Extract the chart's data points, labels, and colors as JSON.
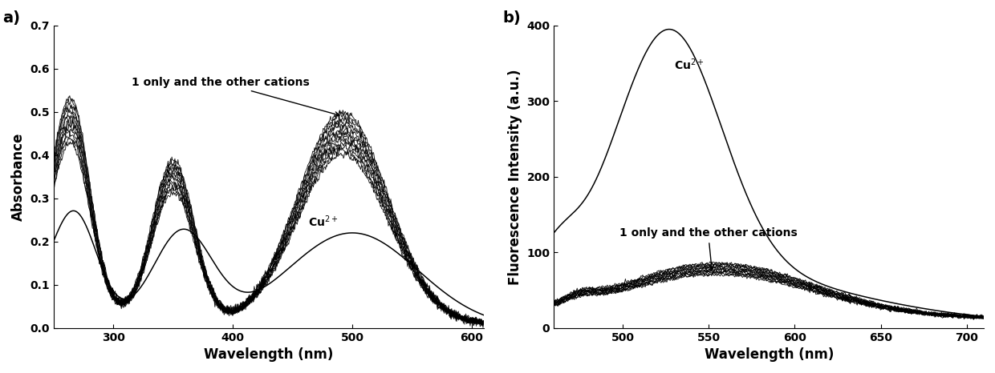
{
  "panel_a": {
    "xlabel": "Wavelength (nm)",
    "ylabel": "Absorbance",
    "xlim": [
      250,
      610
    ],
    "ylim": [
      0.0,
      0.7
    ],
    "yticks": [
      0.0,
      0.1,
      0.2,
      0.3,
      0.4,
      0.5,
      0.6,
      0.7
    ],
    "xticks": [
      300,
      400,
      500,
      600
    ],
    "label": "a)",
    "annotation_group": "1 only and the other cations",
    "annotation_cu": "Cu$^{2+}$"
  },
  "panel_b": {
    "xlabel": "Wavelength (nm)",
    "ylabel": "Fluorescence Intensity (a.u.)",
    "xlim": [
      460,
      710
    ],
    "ylim": [
      0,
      400
    ],
    "yticks": [
      0,
      100,
      200,
      300,
      400
    ],
    "xticks": [
      500,
      550,
      600,
      650,
      700
    ],
    "label": "b)",
    "annotation_cu": "Cu$^{2+}$",
    "annotation_group": "1 only and the other cations"
  },
  "line_color": "#1a1a1a",
  "background_color": "#ffffff",
  "fontsize_label": 12,
  "fontsize_tick": 10,
  "fontsize_annot": 10,
  "fontsize_panel_label": 14
}
